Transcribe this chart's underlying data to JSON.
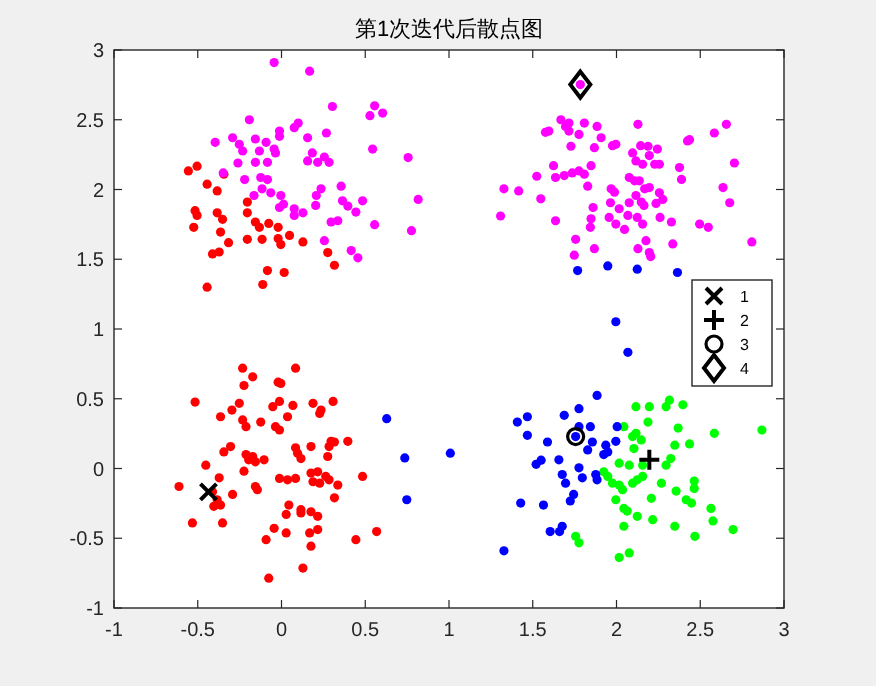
{
  "chart_data": {
    "type": "scatter",
    "title": "第1次迭代后散点图",
    "xlim": [
      -1,
      3
    ],
    "ylim": [
      -1,
      3
    ],
    "xticks": [
      -1,
      -0.5,
      0,
      0.5,
      1,
      1.5,
      2,
      2.5,
      3
    ],
    "yticks": [
      -1,
      -0.5,
      0,
      0.5,
      1,
      1.5,
      2,
      2.5,
      3
    ],
    "grid": false,
    "legend": "right",
    "series": [
      {
        "color": "#ff0000",
        "marker": "circle",
        "x": [
          -0.556,
          -0.504,
          -0.444,
          -0.384,
          -0.344,
          -0.516,
          -0.504,
          -0.524,
          -0.384,
          -0.352,
          -0.364,
          -0.316,
          -0.412,
          -0.372,
          -0.444,
          -0.204,
          -0.204,
          -0.156,
          -0.132,
          -0.116,
          -0.076,
          -0.02,
          -0.02,
          0.048,
          -0.004,
          -0.204,
          -0.084,
          0.016,
          -0.112,
          0.128,
          0.276,
          0.316,
          -0.232,
          0.084,
          -0.172,
          -0.224,
          -0.02,
          -0.004,
          -0.516,
          -0.252,
          -0.052,
          -0.012,
          0.068,
          0.188,
          0.308,
          -0.296,
          -0.232,
          -0.124,
          -0.364,
          -0.212,
          -0.036,
          -0.012,
          0.036,
          0.236,
          0.228,
          -0.304,
          -0.344,
          0.084,
          0.176,
          0.296,
          0.316,
          0.396,
          -0.212,
          -0.172,
          -0.196,
          -0.156,
          -0.104,
          0.096,
          0.116,
          0.284,
          0.276,
          -0.452,
          -0.224,
          -0.372,
          -0.012,
          0.036,
          0.084,
          0.176,
          0.216,
          0.264,
          0.284,
          0.336,
          0.188,
          0.228,
          0.484,
          -0.612,
          -0.412,
          -0.384,
          -0.364,
          -0.404,
          -0.292,
          -0.144,
          -0.156,
          0.044,
          0.116,
          0.116,
          0.316,
          0.028,
          0.176,
          0.216,
          -0.352,
          -0.532,
          -0.044,
          0.028,
          0.168,
          0.216,
          -0.092,
          0.176,
          0.128,
          -0.076,
          0.444,
          0.568
        ],
        "values": [
          2.133,
          2.167,
          2.038,
          1.99,
          2.11,
          1.848,
          1.814,
          1.729,
          1.833,
          1.786,
          1.695,
          1.619,
          1.538,
          1.552,
          1.3,
          1.91,
          1.833,
          1.767,
          1.729,
          1.643,
          1.757,
          1.729,
          1.648,
          1.671,
          1.605,
          1.643,
          1.419,
          1.405,
          1.319,
          1.624,
          1.548,
          1.457,
          0.719,
          0.719,
          0.657,
          0.595,
          0.619,
          0.61,
          0.476,
          0.467,
          0.443,
          0.481,
          0.452,
          0.467,
          0.481,
          0.419,
          0.348,
          0.333,
          0.371,
          0.3,
          0.3,
          0.276,
          0.371,
          0.419,
          0.395,
          0.157,
          0.119,
          0.148,
          0.157,
          0.195,
          0.19,
          0.195,
          0.1,
          0.086,
          0.062,
          0.048,
          0.062,
          0.11,
          0.071,
          0.157,
          0.086,
          0.024,
          -0.019,
          -0.067,
          -0.071,
          -0.081,
          -0.071,
          -0.033,
          -0.024,
          -0.057,
          -0.081,
          -0.119,
          -0.095,
          -0.105,
          -0.057,
          -0.129,
          -0.167,
          -0.224,
          -0.262,
          -0.271,
          -0.186,
          -0.152,
          -0.129,
          -0.262,
          -0.295,
          -0.319,
          -0.21,
          -0.329,
          -0.31,
          -0.343,
          -0.39,
          -0.39,
          -0.429,
          -0.462,
          -0.462,
          -0.438,
          -0.51,
          -0.557,
          -0.714,
          -0.786,
          -0.51,
          -0.452
        ]
      },
      {
        "color": "#00ff00",
        "marker": "circle",
        "x": [
          2.116,
          2.196,
          2.316,
          2.396,
          2.296,
          2.044,
          2.188,
          2.116,
          2.096,
          2.148,
          2.368,
          2.348,
          2.436,
          2.584,
          2.868,
          2.104,
          2.156,
          2.016,
          2.076,
          2.324,
          2.296,
          1.924,
          1.948,
          1.976,
          2.016,
          2.036,
          2.096,
          2.124,
          2.156,
          2.268,
          2.464,
          2.464,
          2.356,
          1.996,
          2.044,
          2.064,
          2.208,
          2.416,
          2.448,
          2.124,
          2.216,
          2.044,
          2.348,
          2.564,
          2.576,
          2.696,
          2.468,
          1.756,
          1.776,
          2.016,
          2.076
        ],
        "values": [
          0.443,
          0.443,
          0.49,
          0.457,
          0.443,
          0.3,
          0.333,
          0.252,
          0.229,
          0.205,
          0.29,
          0.167,
          0.176,
          0.252,
          0.276,
          0.143,
          0.024,
          0.038,
          0.024,
          0.071,
          0.024,
          -0.024,
          -0.057,
          -0.105,
          -0.119,
          -0.152,
          -0.105,
          -0.081,
          -0.057,
          -0.105,
          -0.09,
          -0.143,
          -0.162,
          -0.224,
          -0.286,
          -0.305,
          -0.214,
          -0.224,
          -0.248,
          -0.343,
          -0.367,
          -0.414,
          -0.414,
          -0.286,
          -0.376,
          -0.438,
          -0.486,
          -0.486,
          -0.533,
          -0.638,
          -0.605
        ]
      },
      {
        "color": "#0000ff",
        "marker": "circle",
        "x": [
          1.768,
          1.948,
          2.124,
          2.364,
          1.996,
          2.068,
          1.884,
          1.688,
          1.776,
          1.408,
          1.468,
          1.468,
          1.588,
          1.756,
          1.776,
          1.844,
          1.856,
          1.828,
          1.936,
          1.948,
          2.004,
          1.996,
          1.924,
          1.55,
          1.52,
          1.656,
          1.776,
          1.676,
          1.696,
          1.796,
          1.876,
          1.884,
          1.744,
          1.724,
          1.428,
          1.564,
          1.676,
          1.66,
          1.604,
          1.328,
          0.628,
          0.736,
          0.748,
          1.008
        ],
        "values": [
          1.419,
          1.452,
          1.429,
          1.405,
          1.052,
          0.833,
          0.524,
          0.381,
          0.429,
          0.333,
          0.371,
          0.238,
          0.19,
          0.229,
          0.3,
          0.3,
          0.19,
          0.133,
          0.167,
          0.119,
          0.3,
          0.195,
          0.1,
          0.06,
          0.03,
          0.062,
          0.005,
          -0.043,
          -0.105,
          -0.067,
          -0.043,
          -0.081,
          -0.186,
          -0.233,
          -0.248,
          -0.262,
          -0.414,
          -0.452,
          -0.452,
          -0.59,
          0.357,
          0.076,
          -0.224,
          0.11
        ]
      },
      {
        "color": "#ff00ff",
        "marker": "circle",
        "x": [
          -0.044,
          0.168,
          -0.192,
          -0.396,
          -0.292,
          -0.252,
          -0.232,
          -0.156,
          -0.092,
          -0.132,
          -0.044,
          -0.036,
          -0.012,
          -0.012,
          0.076,
          0.1,
          0.156,
          0.268,
          0.304,
          -0.26,
          -0.156,
          -0.084,
          -0.348,
          -0.22,
          -0.124,
          -0.084,
          -0.116,
          -0.164,
          -0.064,
          -0.004,
          -0.012,
          0.012,
          0.076,
          0.076,
          0.128,
          0.156,
          0.184,
          0.216,
          0.256,
          0.284,
          0.236,
          0.208,
          0.204,
          0.356,
          0.364,
          0.396,
          0.444,
          0.484,
          0.296,
          0.336,
          0.256,
          0.416,
          0.456,
          0.544,
          0.528,
          0.556,
          0.604,
          0.756,
          0.816,
          0.776,
          0.556,
          1.784,
          1.576,
          1.596,
          1.668,
          1.696,
          1.716,
          1.716,
          1.776,
          1.808,
          1.884,
          1.908,
          1.728,
          1.868,
          1.976,
          1.996,
          2.128,
          2.096,
          2.144,
          2.188,
          2.244,
          2.116,
          2.156,
          2.196,
          2.228,
          2.256,
          2.424,
          2.436,
          2.584,
          2.656,
          2.704,
          1.624,
          1.636,
          1.688,
          1.736,
          1.776,
          1.808,
          1.848,
          1.524,
          1.828,
          1.328,
          1.416,
          1.548,
          1.308,
          1.636,
          1.756,
          1.748,
          1.868,
          1.86,
          1.848,
          1.844,
          1.968,
          1.988,
          2.076,
          2.108,
          2.136,
          2.168,
          2.196,
          2.116,
          2.076,
          2.148,
          2.164,
          2.256,
          2.276,
          2.236,
          1.964,
          2.016,
          1.956,
          1.996,
          2.048,
          2.068,
          2.124,
          2.156,
          2.26,
          2.328,
          2.176,
          2.128,
          2.196,
          2.204,
          2.336,
          2.376,
          2.388,
          2.636,
          2.676,
          2.496,
          2.548,
          2.808
        ],
        "values": [
          2.91,
          2.848,
          2.5,
          2.338,
          2.371,
          2.324,
          2.276,
          2.362,
          2.338,
          2.276,
          2.29,
          2.262,
          2.419,
          2.381,
          2.443,
          2.476,
          2.371,
          2.405,
          2.595,
          2.19,
          2.195,
          2.195,
          2.119,
          2.071,
          2.086,
          2.071,
          2.005,
          1.957,
          1.976,
          1.957,
          1.871,
          1.895,
          1.862,
          1.814,
          1.833,
          2.205,
          2.262,
          2.195,
          2.233,
          2.195,
          2.005,
          1.957,
          1.886,
          2.024,
          1.919,
          1.881,
          1.838,
          1.919,
          1.767,
          1.776,
          1.633,
          1.562,
          1.51,
          2.29,
          2.529,
          2.6,
          2.548,
          2.229,
          1.929,
          1.705,
          1.748,
          2.752,
          2.41,
          2.419,
          2.5,
          2.452,
          2.476,
          2.419,
          2.395,
          2.476,
          2.452,
          2.371,
          2.31,
          2.3,
          2.314,
          2.324,
          2.467,
          2.262,
          2.314,
          2.31,
          2.29,
          2.205,
          2.181,
          2.243,
          2.181,
          2.181,
          2.348,
          2.357,
          2.405,
          2.467,
          2.19,
          2.171,
          2.086,
          2.1,
          2.119,
          2.133,
          2.11,
          2.171,
          2.095,
          2.024,
          2.005,
          1.99,
          1.933,
          1.81,
          1.776,
          1.643,
          1.529,
          1.576,
          1.871,
          1.79,
          1.729,
          2.005,
          1.981,
          2.086,
          2.062,
          2.062,
          2.005,
          2.014,
          1.957,
          1.905,
          1.91,
          1.886,
          1.976,
          1.929,
          1.9,
          1.905,
          1.862,
          1.8,
          1.752,
          1.714,
          1.814,
          1.8,
          1.752,
          1.8,
          1.767,
          1.633,
          1.576,
          1.548,
          1.519,
          1.61,
          2.157,
          2.072,
          2.014,
          1.905,
          1.752,
          1.729,
          1.624
        ]
      },
      {
        "name": "1",
        "color": "#000000",
        "marker": "cross",
        "x": [
          -0.436
        ],
        "values": [
          -0.167
        ]
      },
      {
        "name": "2",
        "color": "#000000",
        "marker": "plus",
        "x": [
          2.196
        ],
        "values": [
          0.062
        ]
      },
      {
        "name": "3",
        "color": "#000000",
        "marker": "circle_open",
        "x": [
          1.756
        ],
        "values": [
          0.229
        ]
      },
      {
        "name": "4",
        "color": "#000000",
        "marker": "diamond",
        "x": [
          1.784
        ],
        "values": [
          2.752
        ]
      }
    ]
  }
}
